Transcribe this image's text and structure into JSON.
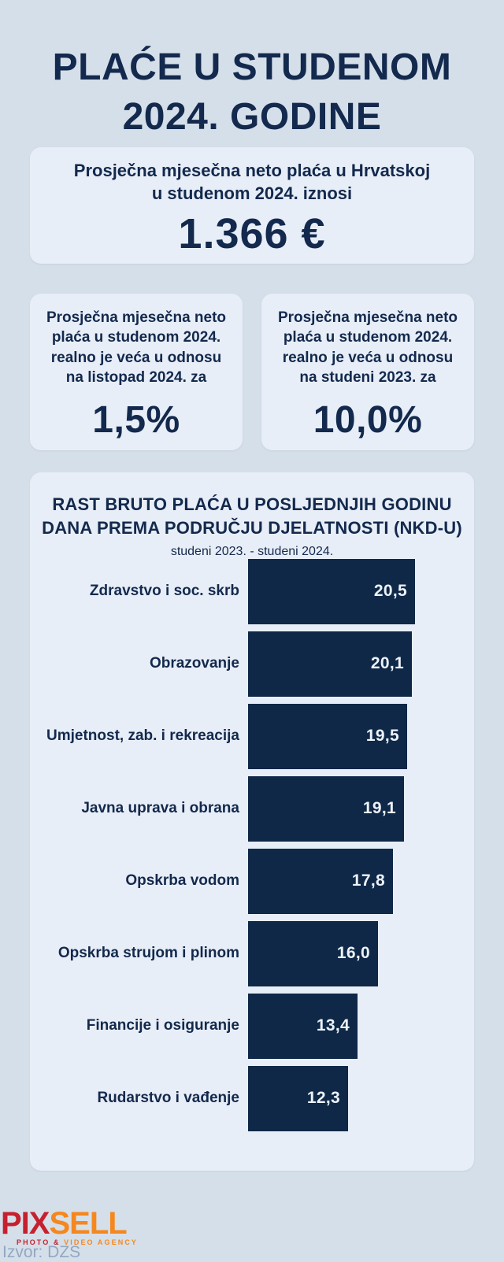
{
  "theme": {
    "background": "#d5dfe9",
    "card_background": "#e8eef7",
    "navy_text": "#13294d",
    "bar_color": "#0f2848",
    "bar_value_color": "#edf2f9",
    "source_color": "#91a8c2",
    "logo_red": "#c6202e",
    "logo_orange": "#f5871e"
  },
  "header": {
    "title_line1": "PLAĆE U STUDENOM",
    "title_line2": "2024. GODINE"
  },
  "hero_card": {
    "text_line1": "Prosječna mjesečna neto plaća u Hrvatskoj",
    "text_line2": "u studenom 2024. iznosi",
    "value": "1.366 €"
  },
  "stat_cards": [
    {
      "lines": [
        "Prosječna mjesečna neto",
        "plaća u studenom 2024.",
        "realno je veća u odnosu",
        "na listopad 2024. za"
      ],
      "value": "1,5%"
    },
    {
      "lines": [
        "Prosječna mjesečna neto",
        "plaća u studenom 2024.",
        "realno je veća u odnosu",
        "na studeni 2023. za"
      ],
      "value": "10,0%"
    }
  ],
  "chart_data": {
    "type": "bar",
    "orientation": "horizontal",
    "title_line1": "RAST BRUTO PLAĆA U POSLJEDNJIH GODINU",
    "title_line2": "DANA PREMA PODRUČJU DJELATNOSTI (NKD-U)",
    "subtitle": "studeni 2023. - studeni 2024.",
    "categories": [
      "Zdravstvo i soc. skrb",
      "Obrazovanje",
      "Umjetnost, zab. i rekreacija",
      "Javna uprava i obrana",
      "Opskrba vodom",
      "Opskrba strujom i plinom",
      "Financije i osiguranje",
      "Rudarstvo i vađenje"
    ],
    "values": [
      20.5,
      20.1,
      19.5,
      19.1,
      17.8,
      16.0,
      13.4,
      12.3
    ],
    "value_labels": [
      "20,5",
      "20,1",
      "19,5",
      "19,1",
      "17,8",
      "16,0",
      "13,4",
      "12,3"
    ],
    "unit": "%",
    "xlim": [
      0,
      20.5
    ],
    "grid": false,
    "legend": false,
    "value_label_position": "inside-right"
  },
  "footer": {
    "logo_text_primary": "PIX",
    "logo_text_secondary": "SELL",
    "tagline_primary": "PHOTO &",
    "tagline_secondary": " VIDEO AGENCY",
    "source": "Izvor: DZS"
  }
}
